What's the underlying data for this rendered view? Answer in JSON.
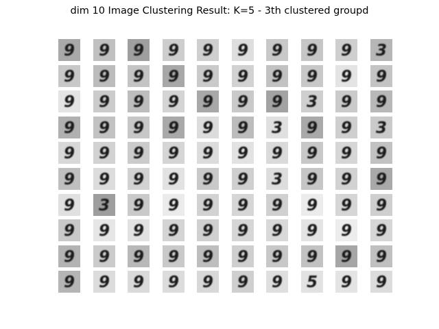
{
  "title": "dim 10 Image Clustering Result: K=5 - 3th clustered groupd",
  "grid": {
    "rows": 10,
    "cols": 10,
    "digit_glyph": "9",
    "ink_color": "#1a1a1a",
    "tiles": [
      {
        "glyph": "9",
        "bg": "#a9a9a9"
      },
      {
        "glyph": "9",
        "bg": "#c0c0c0"
      },
      {
        "glyph": "9",
        "bg": "#9f9f9f"
      },
      {
        "glyph": "9",
        "bg": "#cdcdcd"
      },
      {
        "glyph": "9",
        "bg": "#cfcfcf"
      },
      {
        "glyph": "9",
        "bg": "#dedede"
      },
      {
        "glyph": "9",
        "bg": "#c9c9c9"
      },
      {
        "glyph": "9",
        "bg": "#c6c6c6"
      },
      {
        "glyph": "9",
        "bg": "#cfcfcf"
      },
      {
        "glyph": "3",
        "bg": "#b6b6b6"
      },
      {
        "glyph": "9",
        "bg": "#c8c8c8"
      },
      {
        "glyph": "9",
        "bg": "#bcbcbc"
      },
      {
        "glyph": "9",
        "bg": "#c4c4c4"
      },
      {
        "glyph": "9",
        "bg": "#a8a8a8"
      },
      {
        "glyph": "9",
        "bg": "#cacaca"
      },
      {
        "glyph": "9",
        "bg": "#d2d2d2"
      },
      {
        "glyph": "9",
        "bg": "#c2c2c2"
      },
      {
        "glyph": "9",
        "bg": "#c8c8c8"
      },
      {
        "glyph": "9",
        "bg": "#e4e4e4"
      },
      {
        "glyph": "9",
        "bg": "#c4c4c4"
      },
      {
        "glyph": "9",
        "bg": "#e4e4e4"
      },
      {
        "glyph": "9",
        "bg": "#cbcbcb"
      },
      {
        "glyph": "9",
        "bg": "#bdbdbd"
      },
      {
        "glyph": "9",
        "bg": "#d4d4d4"
      },
      {
        "glyph": "9",
        "bg": "#a8a8a8"
      },
      {
        "glyph": "9",
        "bg": "#c9c9c9"
      },
      {
        "glyph": "9",
        "bg": "#a3a3a3"
      },
      {
        "glyph": "3",
        "bg": "#cfcfcf"
      },
      {
        "glyph": "9",
        "bg": "#cacaca"
      },
      {
        "glyph": "9",
        "bg": "#b8b8b8"
      },
      {
        "glyph": "9",
        "bg": "#b0b0b0"
      },
      {
        "glyph": "9",
        "bg": "#c2c2c2"
      },
      {
        "glyph": "9",
        "bg": "#c7c7c7"
      },
      {
        "glyph": "9",
        "bg": "#a9a9a9"
      },
      {
        "glyph": "9",
        "bg": "#dcdcdc"
      },
      {
        "glyph": "9",
        "bg": "#bcbcbc"
      },
      {
        "glyph": "3",
        "bg": "#e0e0e0"
      },
      {
        "glyph": "9",
        "bg": "#a9a9a9"
      },
      {
        "glyph": "9",
        "bg": "#cfcfcf"
      },
      {
        "glyph": "3",
        "bg": "#cacaca"
      },
      {
        "glyph": "9",
        "bg": "#d8d8d8"
      },
      {
        "glyph": "9",
        "bg": "#d2d2d2"
      },
      {
        "glyph": "9",
        "bg": "#cbcbcb"
      },
      {
        "glyph": "9",
        "bg": "#d5d5d5"
      },
      {
        "glyph": "9",
        "bg": "#dcdcdc"
      },
      {
        "glyph": "9",
        "bg": "#e2e2e2"
      },
      {
        "glyph": "9",
        "bg": "#dadada"
      },
      {
        "glyph": "9",
        "bg": "#c8c8c8"
      },
      {
        "glyph": "9",
        "bg": "#d6d6d6"
      },
      {
        "glyph": "9",
        "bg": "#c2c2c2"
      },
      {
        "glyph": "9",
        "bg": "#bfbfbf"
      },
      {
        "glyph": "9",
        "bg": "#dcdcdc"
      },
      {
        "glyph": "9",
        "bg": "#d2d2d2"
      },
      {
        "glyph": "9",
        "bg": "#e2e2e2"
      },
      {
        "glyph": "9",
        "bg": "#c9c9c9"
      },
      {
        "glyph": "9",
        "bg": "#cfcfcf"
      },
      {
        "glyph": "3",
        "bg": "#dddddd"
      },
      {
        "glyph": "9",
        "bg": "#c6c6c6"
      },
      {
        "glyph": "9",
        "bg": "#d2d2d2"
      },
      {
        "glyph": "9",
        "bg": "#a9a9a9"
      },
      {
        "glyph": "9",
        "bg": "#e0e0e0"
      },
      {
        "glyph": "3",
        "bg": "#9e9e9e"
      },
      {
        "glyph": "9",
        "bg": "#cacaca"
      },
      {
        "glyph": "9",
        "bg": "#ebebeb"
      },
      {
        "glyph": "9",
        "bg": "#d2d2d2"
      },
      {
        "glyph": "9",
        "bg": "#d6d6d6"
      },
      {
        "glyph": "9",
        "bg": "#d0d0d0"
      },
      {
        "glyph": "9",
        "bg": "#ececec"
      },
      {
        "glyph": "9",
        "bg": "#d6d6d6"
      },
      {
        "glyph": "9",
        "bg": "#cfcfcf"
      },
      {
        "glyph": "9",
        "bg": "#c9c9c9"
      },
      {
        "glyph": "9",
        "bg": "#e6e6e6"
      },
      {
        "glyph": "9",
        "bg": "#e2e2e2"
      },
      {
        "glyph": "9",
        "bg": "#d4d4d4"
      },
      {
        "glyph": "9",
        "bg": "#d0d0d0"
      },
      {
        "glyph": "9",
        "bg": "#d6d6d6"
      },
      {
        "glyph": "9",
        "bg": "#d9d9d9"
      },
      {
        "glyph": "9",
        "bg": "#e4e4e4"
      },
      {
        "glyph": "9",
        "bg": "#ededed"
      },
      {
        "glyph": "9",
        "bg": "#d6d6d6"
      },
      {
        "glyph": "9",
        "bg": "#b3b3b3"
      },
      {
        "glyph": "9",
        "bg": "#cbcbcb"
      },
      {
        "glyph": "9",
        "bg": "#b8b8b8"
      },
      {
        "glyph": "9",
        "bg": "#c9c9c9"
      },
      {
        "glyph": "9",
        "bg": "#bebebe"
      },
      {
        "glyph": "9",
        "bg": "#cfcfcf"
      },
      {
        "glyph": "9",
        "bg": "#c8c8c8"
      },
      {
        "glyph": "9",
        "bg": "#c2c2c2"
      },
      {
        "glyph": "9",
        "bg": "#a6a6a6"
      },
      {
        "glyph": "9",
        "bg": "#c0c0c0"
      },
      {
        "glyph": "9",
        "bg": "#b5b5b5"
      },
      {
        "glyph": "9",
        "bg": "#dcdcdc"
      },
      {
        "glyph": "9",
        "bg": "#dadada"
      },
      {
        "glyph": "9",
        "bg": "#dcdcdc"
      },
      {
        "glyph": "9",
        "bg": "#d8d8d8"
      },
      {
        "glyph": "9",
        "bg": "#cfcfcf"
      },
      {
        "glyph": "9",
        "bg": "#dfdfdf"
      },
      {
        "glyph": "5",
        "bg": "#e2e2e2"
      },
      {
        "glyph": "9",
        "bg": "#e4e4e4"
      },
      {
        "glyph": "9",
        "bg": "#dcdcdc"
      }
    ]
  }
}
